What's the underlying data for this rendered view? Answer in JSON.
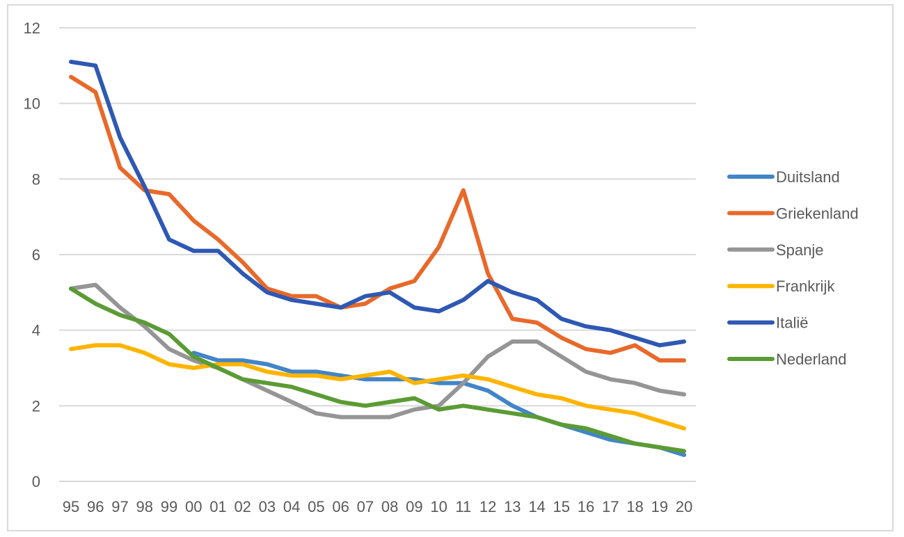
{
  "chart_data": {
    "type": "line",
    "title": "",
    "xlabel": "",
    "ylabel": "",
    "ylim": [
      0,
      12
    ],
    "yticks": [
      0,
      2,
      4,
      6,
      8,
      10,
      12
    ],
    "grid": true,
    "legend_position": "right",
    "categories": [
      "95",
      "96",
      "97",
      "98",
      "99",
      "00",
      "01",
      "02",
      "03",
      "04",
      "05",
      "06",
      "07",
      "08",
      "09",
      "10",
      "11",
      "12",
      "13",
      "14",
      "15",
      "16",
      "17",
      "18",
      "19",
      "20"
    ],
    "series": [
      {
        "name": "Duitsland",
        "color": "#4285c8",
        "values": [
          null,
          null,
          null,
          null,
          null,
          3.4,
          3.2,
          3.2,
          3.1,
          2.9,
          2.9,
          2.8,
          2.7,
          2.7,
          2.7,
          2.6,
          2.6,
          2.4,
          2.0,
          1.7,
          1.5,
          1.3,
          1.1,
          1.0,
          0.9,
          0.7
        ]
      },
      {
        "name": "Griekenland",
        "color": "#e8692a",
        "values": [
          10.7,
          10.3,
          8.3,
          7.7,
          7.6,
          6.9,
          6.4,
          5.8,
          5.1,
          4.9,
          4.9,
          4.6,
          4.7,
          5.1,
          5.3,
          6.2,
          7.7,
          5.5,
          4.3,
          4.2,
          3.8,
          3.5,
          3.4,
          3.6,
          3.2,
          3.2
        ]
      },
      {
        "name": "Spanje",
        "color": "#959595",
        "values": [
          5.1,
          5.2,
          4.6,
          4.1,
          3.5,
          3.2,
          3.0,
          2.7,
          2.4,
          2.1,
          1.8,
          1.7,
          1.7,
          1.7,
          1.9,
          2.0,
          2.6,
          3.3,
          3.7,
          3.7,
          3.3,
          2.9,
          2.7,
          2.6,
          2.4,
          2.3
        ]
      },
      {
        "name": "Frankrijk",
        "color": "#ffb400",
        "values": [
          3.5,
          3.6,
          3.6,
          3.4,
          3.1,
          3.0,
          3.1,
          3.1,
          2.9,
          2.8,
          2.8,
          2.7,
          2.8,
          2.9,
          2.6,
          2.7,
          2.8,
          2.7,
          2.5,
          2.3,
          2.2,
          2.0,
          1.9,
          1.8,
          1.6,
          1.4
        ]
      },
      {
        "name": "Italië",
        "color": "#2e58b4",
        "values": [
          11.1,
          11.0,
          9.1,
          7.8,
          6.4,
          6.1,
          6.1,
          5.5,
          5.0,
          4.8,
          4.7,
          4.6,
          4.9,
          5.0,
          4.6,
          4.5,
          4.8,
          5.3,
          5.0,
          4.8,
          4.3,
          4.1,
          4.0,
          3.8,
          3.6,
          3.7
        ]
      },
      {
        "name": "Nederland",
        "color": "#5b9b34",
        "values": [
          5.1,
          4.7,
          4.4,
          4.2,
          3.9,
          3.3,
          3.0,
          2.7,
          2.6,
          2.5,
          2.3,
          2.1,
          2.0,
          2.1,
          2.2,
          1.9,
          2.0,
          1.9,
          1.8,
          1.7,
          1.5,
          1.4,
          1.2,
          1.0,
          0.9,
          0.8
        ]
      }
    ]
  },
  "style": {
    "gridline_color": "#d9d9d9",
    "text_color": "#595959",
    "border_color": "#d9d9d9"
  }
}
